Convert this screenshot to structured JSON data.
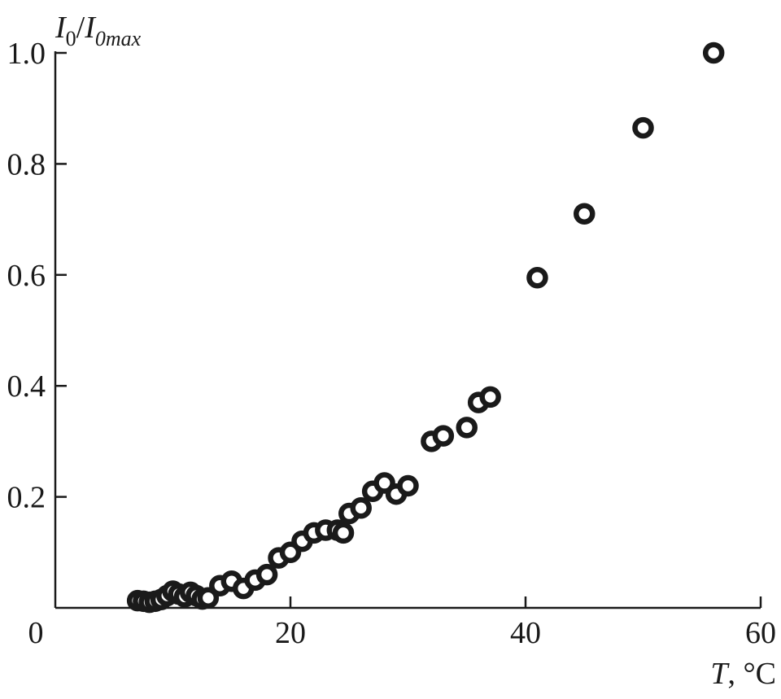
{
  "chart_data": {
    "type": "scatter",
    "title": "",
    "xlabel_symbol": "T",
    "xlabel_unit": ", °C",
    "ylabel_num_base": "I",
    "ylabel_num_sub": "0",
    "ylabel_den_base": "I",
    "ylabel_den_sub": "0max",
    "xlim": [
      0,
      60
    ],
    "ylim": [
      0,
      1.0
    ],
    "x_ticks": [
      0,
      20,
      40,
      60
    ],
    "x_tick_labels": [
      "0",
      "20",
      "40",
      "60"
    ],
    "y_ticks": [
      0.2,
      0.4,
      0.6,
      0.8,
      1.0
    ],
    "y_tick_labels": [
      "0.2",
      "0.4",
      "0.6",
      "0.8",
      "1.0"
    ],
    "grid": false,
    "legend": "none",
    "marker": "open-circle",
    "series": [
      {
        "x": [
          7,
          7.5,
          8,
          8.5,
          9,
          9.5,
          10,
          10.5,
          11,
          11.5,
          12,
          12.5,
          13,
          14,
          15,
          16,
          17,
          18,
          19,
          20,
          21,
          22,
          23,
          24,
          24.5,
          25,
          26,
          27,
          28,
          29,
          30,
          32,
          33,
          35,
          36,
          37,
          41,
          45,
          50,
          56
        ],
        "y": [
          0.013,
          0.012,
          0.01,
          0.012,
          0.015,
          0.022,
          0.03,
          0.025,
          0.02,
          0.028,
          0.022,
          0.016,
          0.018,
          0.04,
          0.048,
          0.035,
          0.05,
          0.06,
          0.09,
          0.1,
          0.12,
          0.135,
          0.14,
          0.14,
          0.135,
          0.17,
          0.18,
          0.21,
          0.225,
          0.205,
          0.22,
          0.3,
          0.31,
          0.325,
          0.37,
          0.38,
          0.595,
          0.71,
          0.865,
          1.0
        ]
      }
    ]
  }
}
